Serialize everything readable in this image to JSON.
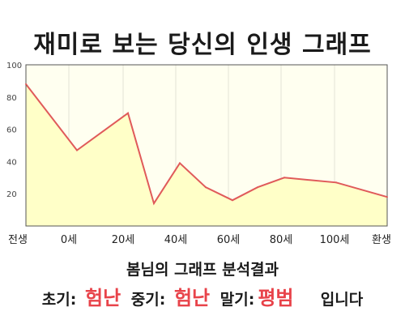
{
  "title": "재미로 보는 당신의 인생 그래프",
  "chart_data": {
    "type": "area",
    "x_labels": [
      "전생",
      "0세",
      "20세",
      "40세",
      "60세",
      "80세",
      "100세",
      "환생"
    ],
    "y_ticks": [
      20,
      40,
      60,
      80,
      100
    ],
    "ylim": [
      0,
      100
    ],
    "points": [
      {
        "x": "전생",
        "y": 88
      },
      {
        "y": 47
      },
      {
        "x": "20세",
        "y": 70
      },
      {
        "y": 14
      },
      {
        "y": 39
      },
      {
        "y": 24
      },
      {
        "y": 16
      },
      {
        "y": 24
      },
      {
        "y": 30
      },
      {
        "y": 27
      },
      {
        "y": 18
      }
    ],
    "grid": "vertical",
    "colors": {
      "line": "#e05a5a",
      "fill": "#ffffc8",
      "background": "#fffff0"
    }
  },
  "result": {
    "title": "봄님의 그래프 분석결과",
    "early_label": "초기:",
    "early_value": "험난",
    "mid_label": "중기:",
    "mid_value": "험난",
    "late_label": "말기:",
    "late_value": "평범",
    "suffix": "입니다",
    "highlight_color": "#e8434a"
  }
}
